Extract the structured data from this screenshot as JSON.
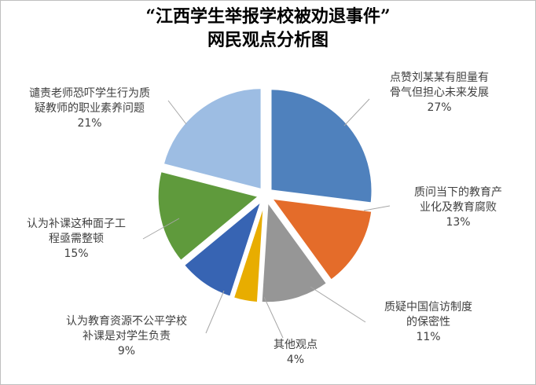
{
  "chart_data": {
    "type": "pie",
    "title_lines": [
      "“江西学生举报学校被劝退事件”",
      "网民观点分析图"
    ],
    "slices": [
      {
        "name_lines": [
          "点赞刘某某有胆量有",
          "骨气但担心未来发展"
        ],
        "value": 27,
        "label": "27%",
        "color": "#4f81bd"
      },
      {
        "name_lines": [
          "质问当下的教育产",
          "业化及教育腐败"
        ],
        "value": 13,
        "label": "13%",
        "color": "#e46c2a"
      },
      {
        "name_lines": [
          "质疑中国信访制度",
          "的保密性"
        ],
        "value": 11,
        "label": "11%",
        "color": "#969696"
      },
      {
        "name_lines": [
          "其他观点"
        ],
        "value": 4,
        "label": "4%",
        "color": "#e8ad00"
      },
      {
        "name_lines": [
          "认为教育资源不公平学校",
          "补课是对学生负责"
        ],
        "value": 9,
        "label": "9%",
        "color": "#3764b3"
      },
      {
        "name_lines": [
          "认为补课这种面子工",
          "程亟需整顿"
        ],
        "value": 15,
        "label": "15%",
        "color": "#5f9a3c"
      },
      {
        "name_lines": [
          "谴责老师恐吓学生行为质",
          "疑教师的职业素养问题"
        ],
        "value": 21,
        "label": "21%",
        "color": "#9dbde3"
      }
    ],
    "legend": "none"
  }
}
